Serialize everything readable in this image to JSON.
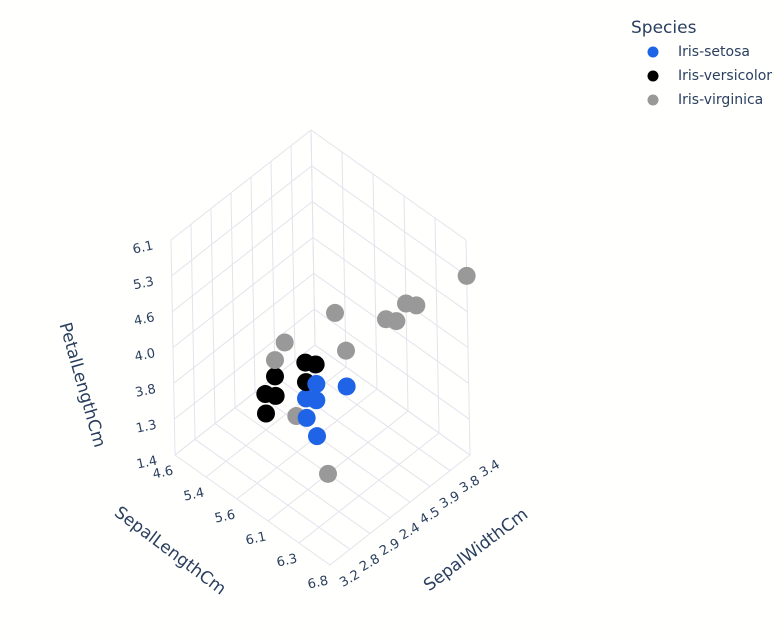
{
  "chart_data": {
    "type": "scatter3d",
    "legend_title": "Species",
    "legend_position": "top-right",
    "grid": true,
    "xaxis": {
      "title": "SepalLengthCm",
      "categories": [
        "4.6",
        "5.4",
        "5.6",
        "6.1",
        "6.3",
        "6.8"
      ]
    },
    "yaxis": {
      "title": "SepalWidthCm",
      "categories": [
        "3.2",
        "2.8",
        "2.9",
        "2.4",
        "4.5",
        "3.9",
        "3.8",
        "3.4"
      ]
    },
    "zaxis": {
      "title": "PetalLengthCm",
      "categories": [
        "1.4",
        "1.3",
        "3.8",
        "4.0",
        "4.6",
        "5.3",
        "6.1"
      ]
    },
    "series": [
      {
        "name": "Iris-setosa",
        "color": "#1f63e6",
        "x": [
          6.1,
          5.6,
          6.1,
          5.4,
          6.3,
          5.6
        ],
        "y": [
          4.5,
          4.5,
          2.9,
          3.9,
          2.8,
          4.5
        ],
        "z": [
          3.8,
          1.3,
          3.8,
          1.4,
          4.6,
          1.4
        ]
      },
      {
        "name": "Iris-versicolor",
        "color": "#000000",
        "x": [
          5.6,
          5.4,
          4.6,
          5.4,
          5.6,
          6.1,
          6.1
        ],
        "y": [
          4.5,
          3.9,
          3.9,
          2.4,
          2.9,
          3.2,
          2.9
        ],
        "z": [
          3.8,
          1.3,
          1.4,
          1.3,
          3.8,
          4.0,
          4.0
        ]
      },
      {
        "name": "Iris-virginica",
        "color": "#999999",
        "x": [
          6.8,
          6.1,
          6.3,
          6.1,
          6.3,
          5.6,
          6.1,
          5.4,
          5.6,
          5.6,
          6.1
        ],
        "y": [
          3.4,
          3.8,
          3.8,
          3.4,
          3.9,
          3.9,
          4.5,
          4.5,
          2.9,
          2.4,
          2.4
        ],
        "z": [
          5.3,
          4.0,
          4.6,
          4.0,
          4.6,
          4.0,
          4.0,
          3.8,
          4.0,
          1.3,
          1.4
        ]
      }
    ]
  }
}
